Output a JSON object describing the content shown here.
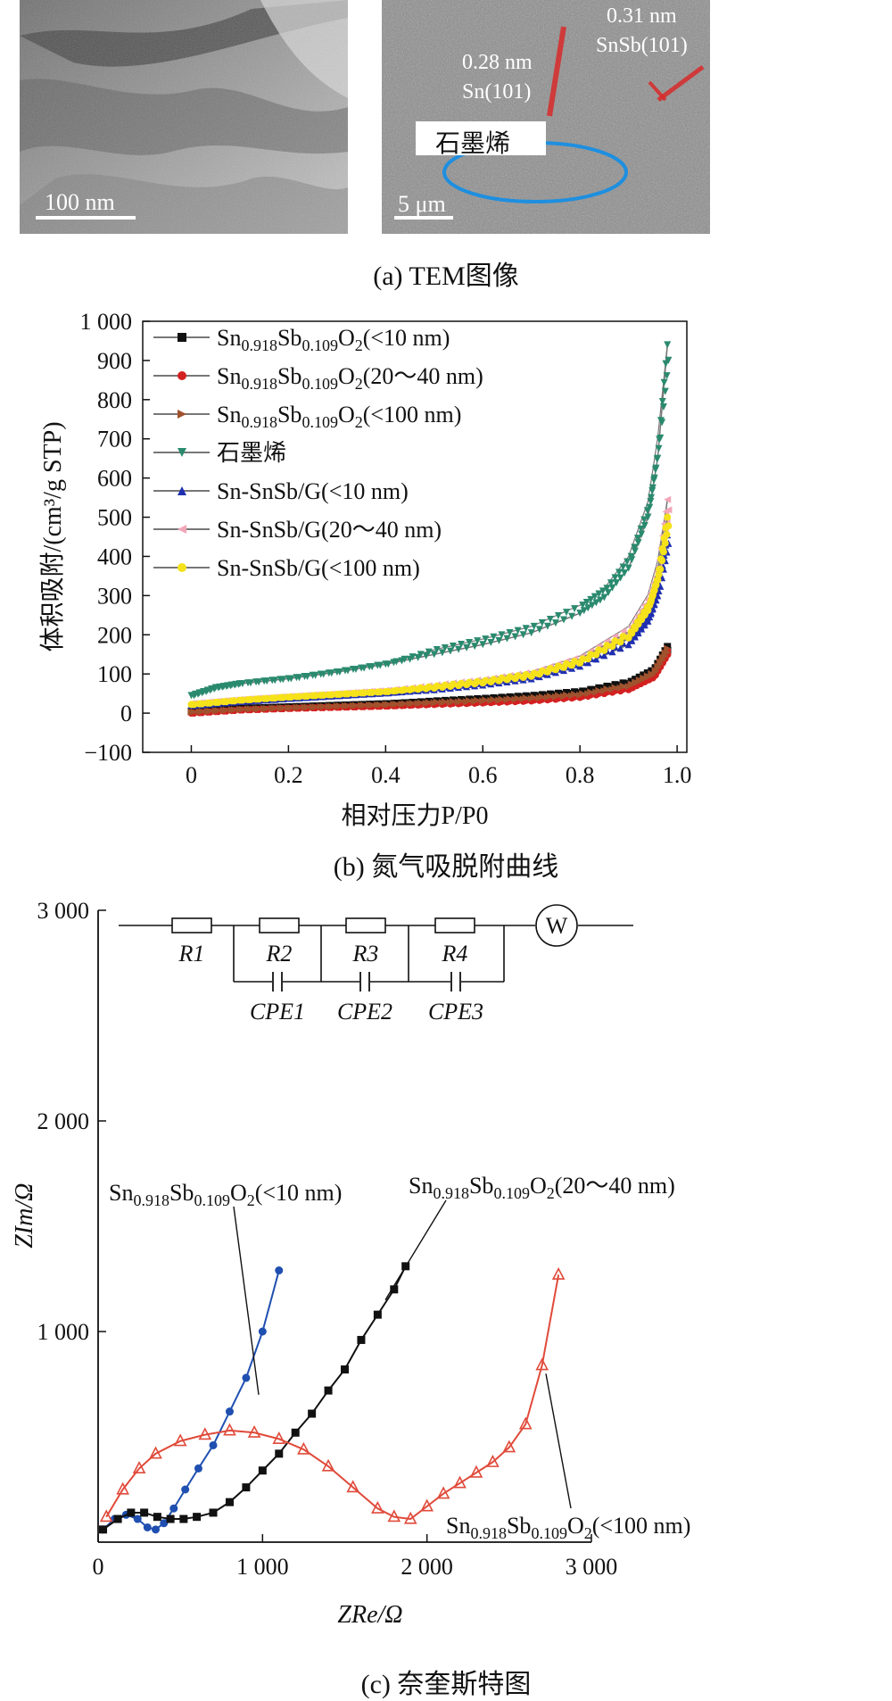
{
  "panel_a": {
    "caption": "(a) TEM图像",
    "left_scale_bar": "100 nm",
    "right_scale_bar": "5 μm",
    "label_graphene": "石墨烯",
    "label_sn_spacing": "0.28 nm",
    "label_sn_plane": "Sn(101)",
    "label_snsb_spacing": "0.31 nm",
    "label_snsb_plane": "SnSb(101)"
  },
  "panel_b": {
    "caption": "(b) 氮气吸脱附曲线"
  },
  "panel_c": {
    "caption": "(c) 奈奎斯特图",
    "circuit": {
      "resistors": [
        "R1",
        "R2",
        "R3",
        "R4"
      ],
      "cpes": [
        "CPE1",
        "CPE2",
        "CPE3"
      ],
      "warburg": "W"
    }
  },
  "chart_data": [
    {
      "type": "line",
      "xlabel": "相对压力P/P0",
      "ylabel": "体积吸附/(cm³/g STP)",
      "xlim": [
        -0.1,
        1.02
      ],
      "ylim": [
        -100,
        1000
      ],
      "x_ticks": [
        "0",
        "0.2",
        "0.4",
        "0.6",
        "0.8",
        "1.0"
      ],
      "y_ticks": [
        "−100",
        "0",
        "100",
        "200",
        "300",
        "400",
        "500",
        "600",
        "700",
        "800",
        "900",
        "1 000"
      ],
      "legend_position": "top-left",
      "series": [
        {
          "name": "Sn0.918Sb0.109O2(<10 nm)",
          "label_main": "Sn",
          "label_sub1": "0.918",
          "label_mid": "Sb",
          "label_sub2": "0.109",
          "label_o": "O",
          "label_sub3": "2",
          "label_tail": "(<10 nm)",
          "color": "#111111",
          "marker": "square",
          "x": [
            0.0,
            0.1,
            0.2,
            0.3,
            0.4,
            0.5,
            0.6,
            0.7,
            0.8,
            0.9,
            0.95,
            0.98
          ],
          "y": [
            5,
            12,
            16,
            20,
            24,
            29,
            35,
            42,
            52,
            75,
            105,
            170
          ]
        },
        {
          "name": "Sn0.918Sb0.109O2(20~40 nm)",
          "label_main": "Sn",
          "label_sub1": "0.918",
          "label_mid": "Sb",
          "label_sub2": "0.109",
          "label_o": "O",
          "label_sub3": "2",
          "label_tail": "(20～40 nm)",
          "color": "#d42020",
          "marker": "circle",
          "x": [
            0.0,
            0.1,
            0.2,
            0.3,
            0.4,
            0.5,
            0.6,
            0.7,
            0.8,
            0.9,
            0.95,
            0.98
          ],
          "y": [
            0,
            8,
            12,
            15,
            18,
            22,
            26,
            31,
            40,
            60,
            90,
            160
          ]
        },
        {
          "name": "Sn0.918Sb0.109O2(<100 nm)",
          "label_main": "Sn",
          "label_sub1": "0.918",
          "label_mid": "Sb",
          "label_sub2": "0.109",
          "label_o": "O",
          "label_sub3": "2",
          "label_tail": "(<100 nm)",
          "color": "#a0522d",
          "marker": "triangle-right",
          "x": [
            0.0,
            0.1,
            0.2,
            0.3,
            0.4,
            0.5,
            0.6,
            0.7,
            0.8,
            0.9,
            0.95,
            0.98
          ],
          "y": [
            3,
            10,
            14,
            18,
            22,
            26,
            31,
            37,
            46,
            68,
            98,
            165
          ]
        },
        {
          "name": "石墨烯",
          "label_main": "石墨烯",
          "color": "#2a8a6e",
          "marker": "triangle-down",
          "x": [
            0.0,
            0.05,
            0.1,
            0.2,
            0.3,
            0.4,
            0.5,
            0.6,
            0.7,
            0.8,
            0.85,
            0.9,
            0.94,
            0.96,
            0.98
          ],
          "y": [
            45,
            65,
            75,
            88,
            105,
            125,
            150,
            175,
            205,
            255,
            295,
            370,
            500,
            650,
            940
          ]
        },
        {
          "name": "Sn-SnSb/G(<10 nm)",
          "label_main": "Sn-SnSb/G(<10 nm)",
          "color": "#1f2fb0",
          "marker": "triangle-up",
          "x": [
            0.0,
            0.1,
            0.2,
            0.3,
            0.4,
            0.5,
            0.6,
            0.7,
            0.8,
            0.9,
            0.94,
            0.96,
            0.98
          ],
          "y": [
            20,
            30,
            38,
            45,
            52,
            60,
            72,
            88,
            120,
            175,
            235,
            300,
            455
          ]
        },
        {
          "name": "Sn-SnSb/G(20~40 nm)",
          "label_main": "Sn-SnSb/G(20～40 nm)",
          "color": "#f2a6b8",
          "marker": "triangle-left",
          "x": [
            0.0,
            0.1,
            0.2,
            0.3,
            0.4,
            0.5,
            0.6,
            0.7,
            0.8,
            0.9,
            0.94,
            0.96,
            0.98
          ],
          "y": [
            25,
            35,
            43,
            50,
            58,
            67,
            80,
            98,
            135,
            205,
            280,
            360,
            545
          ]
        },
        {
          "name": "Sn-SnSb/G(<100 nm)",
          "label_main": "Sn-SnSb/G(<100 nm)",
          "color": "#f5e21a",
          "marker": "circle",
          "x": [
            0.0,
            0.1,
            0.2,
            0.3,
            0.4,
            0.5,
            0.6,
            0.7,
            0.8,
            0.9,
            0.94,
            0.96,
            0.98
          ],
          "y": [
            22,
            33,
            41,
            48,
            55,
            64,
            77,
            94,
            128,
            192,
            262,
            340,
            500
          ]
        }
      ]
    },
    {
      "type": "scatter",
      "xlabel": "ZRe/Ω",
      "ylabel": "ZIm/Ω",
      "xlim": [
        0,
        3000
      ],
      "ylim": [
        0,
        3000
      ],
      "x_ticks": [
        "0",
        "1 000",
        "2 000",
        "3 000"
      ],
      "y_ticks": [
        "1 000",
        "2 000",
        "3 000"
      ],
      "series": [
        {
          "name": "Sn0.918Sb0.109O2(<10 nm)",
          "label_main": "Sn",
          "label_sub1": "0.918",
          "label_mid": "Sb",
          "label_sub2": "0.109",
          "label_o": "O",
          "label_sub3": "2",
          "label_tail": "(<10 nm)",
          "color": "#1f4fb0",
          "marker": "circle",
          "x": [
            30,
            100,
            170,
            240,
            300,
            350,
            400,
            460,
            530,
            610,
            700,
            800,
            900,
            1000,
            1100
          ],
          "y": [
            60,
            110,
            130,
            110,
            70,
            60,
            90,
            160,
            250,
            350,
            460,
            620,
            780,
            1000,
            1290
          ]
        },
        {
          "name": "Sn0.918Sb0.109O2(20~40 nm)",
          "label_main": "Sn",
          "label_sub1": "0.918",
          "label_mid": "Sb",
          "label_sub2": "0.109",
          "label_o": "O",
          "label_sub3": "2",
          "label_tail": "(20～40 nm)",
          "color": "#111111",
          "marker": "square",
          "x": [
            30,
            120,
            200,
            280,
            360,
            440,
            520,
            600,
            700,
            800,
            900,
            1000,
            1100,
            1200,
            1300,
            1400,
            1500,
            1600,
            1700,
            1800,
            1870
          ],
          "y": [
            60,
            110,
            140,
            140,
            120,
            110,
            110,
            120,
            140,
            190,
            260,
            340,
            420,
            520,
            610,
            720,
            820,
            960,
            1080,
            1200,
            1310
          ]
        },
        {
          "name": "Sn0.918Sb0.109O2(<100 nm)",
          "label_main": "Sn",
          "label_sub1": "0.918",
          "label_mid": "Sb",
          "label_sub2": "0.109",
          "label_o": "O",
          "label_sub3": "2",
          "label_tail": "(<100 nm)",
          "color": "#e04a3a",
          "marker": "triangle-open",
          "x": [
            50,
            150,
            250,
            350,
            500,
            650,
            800,
            950,
            1100,
            1250,
            1400,
            1550,
            1700,
            1800,
            1900,
            2000,
            2100,
            2200,
            2300,
            2400,
            2500,
            2600,
            2700,
            2800
          ],
          "y": [
            120,
            250,
            350,
            420,
            480,
            510,
            530,
            520,
            490,
            440,
            360,
            260,
            160,
            120,
            110,
            170,
            230,
            280,
            330,
            380,
            450,
            560,
            840,
            1270
          ]
        }
      ]
    }
  ]
}
